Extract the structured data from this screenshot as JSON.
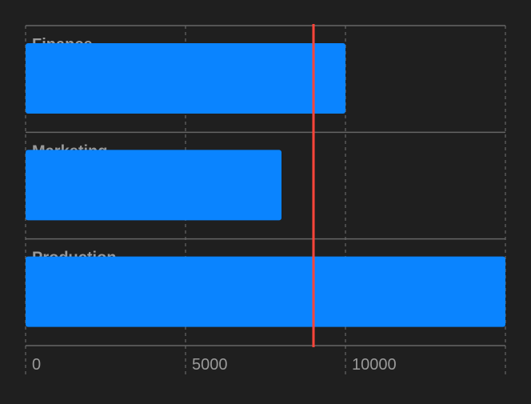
{
  "chart_data": {
    "type": "bar",
    "orientation": "horizontal",
    "categories": [
      "Finance",
      "Marketing",
      "Production"
    ],
    "values": [
      10000,
      8000,
      15000
    ],
    "xlim": [
      0,
      15000
    ],
    "xticks": [
      0,
      5000,
      10000
    ],
    "rule_value": 9000,
    "grid": true,
    "colors": {
      "background": "#1f1f1f",
      "bar": "#0a84ff",
      "rule": "#ff453a",
      "grid": "#666666",
      "label": "#9a9a9a"
    }
  }
}
